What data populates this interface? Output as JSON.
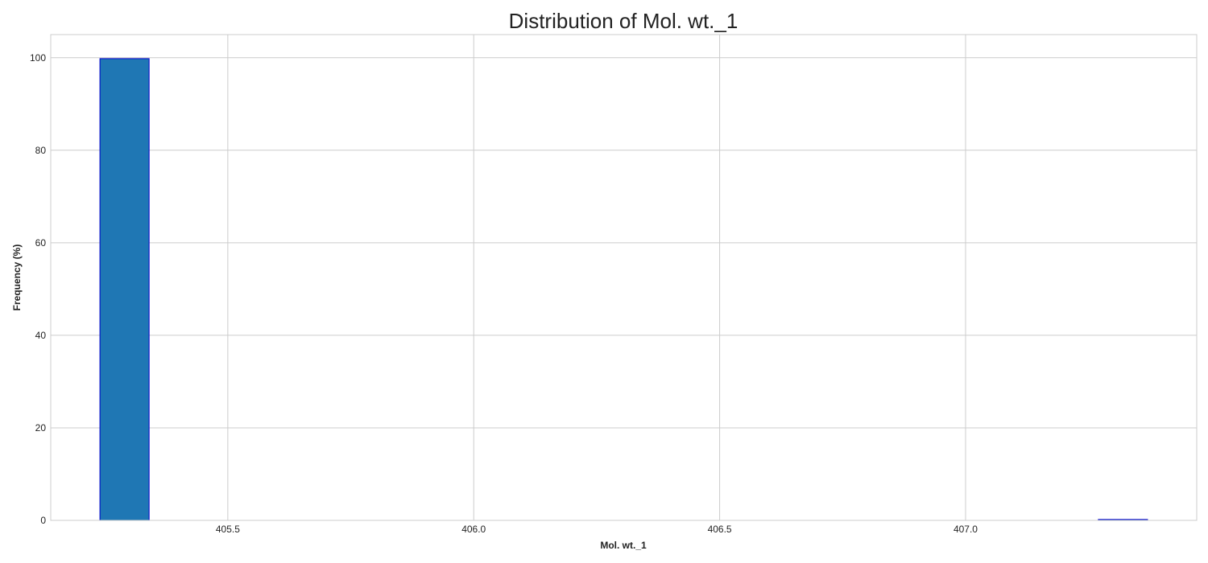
{
  "chart_data": {
    "type": "bar",
    "title": "Distribution of Mol. wt._1",
    "xlabel": "Mol. wt._1",
    "ylabel": "Frequency (%)",
    "xlim": [
      405.14,
      407.47
    ],
    "ylim": [
      0,
      105
    ],
    "xticks": [
      "405.5",
      "406.0",
      "406.5",
      "407.0"
    ],
    "yticks": [
      "0",
      "20",
      "40",
      "60",
      "80",
      "100"
    ],
    "bins": [
      {
        "x0": 405.24,
        "x1": 405.34,
        "value": 99.8
      },
      {
        "x0": 407.27,
        "x1": 407.37,
        "value": 0.2
      }
    ],
    "grid": true,
    "colors": {
      "bar_fill": "#1f77b4",
      "bar_edge": "#0000cc",
      "grid": "#cccccc",
      "frame": "#cccccc"
    }
  }
}
